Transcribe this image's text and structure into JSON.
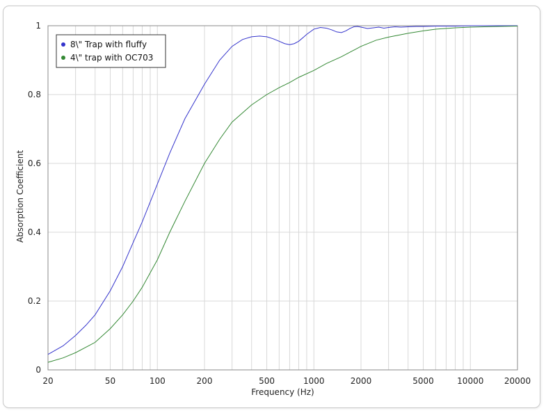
{
  "chart_data": {
    "type": "line",
    "title": "",
    "xlabel": "Frequency (Hz)",
    "ylabel": "Absorption Coefficient",
    "xscale": "log",
    "xlim": [
      20,
      20000
    ],
    "ylim": [
      0,
      1
    ],
    "grid": true,
    "legend_position": "top-left",
    "x_ticks": [
      20,
      50,
      100,
      200,
      500,
      1000,
      2000,
      5000,
      10000,
      20000
    ],
    "x_tick_labels": [
      "20",
      "50",
      "100",
      "200",
      "500",
      "1000",
      "2000",
      "5000",
      "10000",
      "20000"
    ],
    "y_ticks": [
      0,
      0.2,
      0.4,
      0.6,
      0.8,
      1
    ],
    "y_tick_labels": [
      "0",
      "0.2",
      "0.4",
      "0.6",
      "0.8",
      "1"
    ],
    "series": [
      {
        "name": "8\\\" Trap with fluffy",
        "color": "#3333cc",
        "x": [
          20,
          25,
          30,
          35,
          40,
          50,
          60,
          70,
          80,
          100,
          120,
          150,
          200,
          250,
          300,
          350,
          400,
          450,
          500,
          550,
          600,
          650,
          700,
          750,
          800,
          850,
          900,
          1000,
          1100,
          1200,
          1300,
          1400,
          1500,
          1600,
          1700,
          1800,
          1900,
          2000,
          2200,
          2400,
          2600,
          2800,
          3000,
          3300,
          3600,
          4000,
          4500,
          5000,
          6000,
          7000,
          8000,
          10000,
          15000,
          20000
        ],
        "y": [
          0.045,
          0.07,
          0.1,
          0.13,
          0.16,
          0.23,
          0.3,
          0.37,
          0.43,
          0.54,
          0.63,
          0.73,
          0.83,
          0.9,
          0.94,
          0.96,
          0.968,
          0.97,
          0.968,
          0.962,
          0.955,
          0.948,
          0.945,
          0.948,
          0.955,
          0.965,
          0.975,
          0.99,
          0.995,
          0.993,
          0.988,
          0.982,
          0.98,
          0.985,
          0.992,
          0.997,
          0.998,
          0.996,
          0.992,
          0.994,
          0.996,
          0.993,
          0.995,
          0.997,
          0.996,
          0.997,
          0.998,
          0.998,
          0.999,
          0.999,
          0.999,
          1.0,
          1.0,
          1.0
        ]
      },
      {
        "name": "4\\\" trap with OC703",
        "color": "#338833",
        "x": [
          20,
          25,
          30,
          35,
          40,
          50,
          60,
          70,
          80,
          100,
          120,
          150,
          200,
          250,
          300,
          400,
          500,
          600,
          700,
          800,
          1000,
          1200,
          1500,
          2000,
          2500,
          3000,
          4000,
          5000,
          6000,
          8000,
          10000,
          15000,
          20000
        ],
        "y": [
          0.022,
          0.035,
          0.05,
          0.066,
          0.08,
          0.12,
          0.16,
          0.2,
          0.24,
          0.32,
          0.4,
          0.49,
          0.6,
          0.67,
          0.72,
          0.77,
          0.8,
          0.82,
          0.835,
          0.85,
          0.87,
          0.89,
          0.91,
          0.94,
          0.958,
          0.967,
          0.978,
          0.985,
          0.99,
          0.994,
          0.996,
          0.998,
          0.999
        ]
      }
    ]
  }
}
